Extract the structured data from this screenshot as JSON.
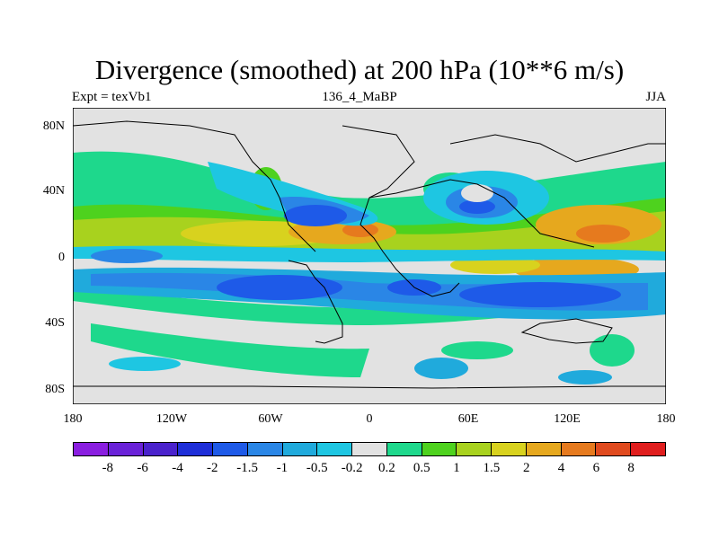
{
  "title": "Divergence (smoothed) at 200 hPa (10**6 m/s)",
  "subtitle": {
    "left": "Expt = texVb1",
    "center": "136_4_MaBP",
    "right": "JJA"
  },
  "map": {
    "lat_labels": [
      "80N",
      "40N",
      "0",
      "40S",
      "80S"
    ],
    "lon_labels": [
      "180",
      "120W",
      "60W",
      "0",
      "60E",
      "120E",
      "180"
    ]
  },
  "colorbar": {
    "colors": [
      "#8a1ee0",
      "#6a22d8",
      "#4a22cc",
      "#1e2ed8",
      "#1e5ae8",
      "#2a86e6",
      "#20aadc",
      "#1ec6e2",
      "#e2e2e2",
      "#1ed88c",
      "#4ed21e",
      "#a8d21e",
      "#d8d21e",
      "#e6a81e",
      "#e67a1e",
      "#e04a1e",
      "#e01e1e"
    ],
    "labels": [
      "-8",
      "-6",
      "-4",
      "-2",
      "-1.5",
      "-1",
      "-0.5",
      "-0.2",
      "0.2",
      "0.5",
      "1",
      "1.5",
      "2",
      "4",
      "6",
      "8"
    ]
  }
}
